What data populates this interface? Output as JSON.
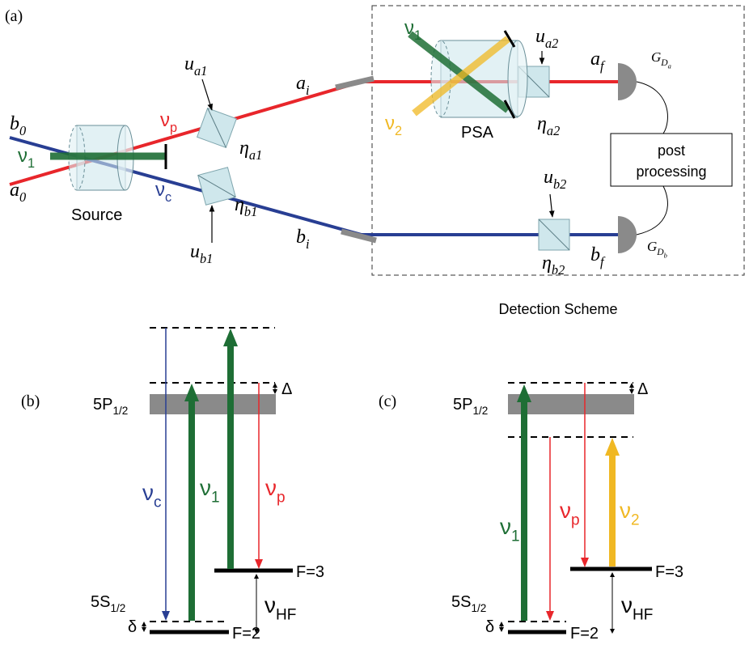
{
  "panel_a": {
    "label": "(a)",
    "b0": {
      "base": "b",
      "sub": "0"
    },
    "a0": {
      "base": "a",
      "sub": "0"
    },
    "nu1_src": {
      "base": "ν",
      "sub": "1"
    },
    "source": "Source",
    "nup": {
      "base": "ν",
      "sub": "p"
    },
    "nuc": {
      "base": "ν",
      "sub": "c"
    },
    "ua1": {
      "base": "u",
      "sub": "a1"
    },
    "eta_a1": {
      "base": "η",
      "sub": "a1"
    },
    "ub1": {
      "base": "u",
      "sub": "b1"
    },
    "eta_b1": {
      "base": "η",
      "sub": "b1"
    },
    "ai": {
      "base": "a",
      "sub": "i"
    },
    "bi": {
      "base": "b",
      "sub": "i"
    },
    "nu1_psa": {
      "base": "ν",
      "sub": "1"
    },
    "nu2_psa": {
      "base": "ν",
      "sub": "2"
    },
    "psa": "PSA",
    "ua2": {
      "base": "u",
      "sub": "a2"
    },
    "eta_a2": {
      "base": "η",
      "sub": "a2"
    },
    "af": {
      "base": "a",
      "sub": "f"
    },
    "gda": {
      "base": "G",
      "sub": "D",
      "subsub": "a"
    },
    "ub2": {
      "base": "u",
      "sub": "b2"
    },
    "eta_b2": {
      "base": "η",
      "sub": "b2"
    },
    "bf": {
      "base": "b",
      "sub": "f"
    },
    "gdb": {
      "base": "G",
      "sub": "D",
      "subsub": "b"
    },
    "post_processing": [
      "post",
      "processing"
    ],
    "detection": "Detection Scheme"
  },
  "panel_b": {
    "label": "(b)",
    "level_5p": {
      "base": "5P",
      "sub": "1/2"
    },
    "level_5s": {
      "base": "5S",
      "sub": "1/2"
    },
    "delta_big": "Δ",
    "delta_small": "δ",
    "nuc": {
      "base": "ν",
      "sub": "c"
    },
    "nu1": {
      "base": "ν",
      "sub": "1"
    },
    "nup": {
      "base": "ν",
      "sub": "p"
    },
    "f3": "F=3",
    "f2": "F=2",
    "nuhf": {
      "base": "ν",
      "sub": "HF"
    }
  },
  "panel_c": {
    "label": "(c)",
    "level_5p": {
      "base": "5P",
      "sub": "1/2"
    },
    "level_5s": {
      "base": "5S",
      "sub": "1/2"
    },
    "delta_big": "Δ",
    "delta_small": "δ",
    "nu1": {
      "base": "ν",
      "sub": "1"
    },
    "nup": {
      "base": "ν",
      "sub": "p"
    },
    "nu2": {
      "base": "ν",
      "sub": "2"
    },
    "f3": "F=3",
    "f2": "F=2",
    "nuhf": {
      "base": "ν",
      "sub": "HF"
    }
  }
}
